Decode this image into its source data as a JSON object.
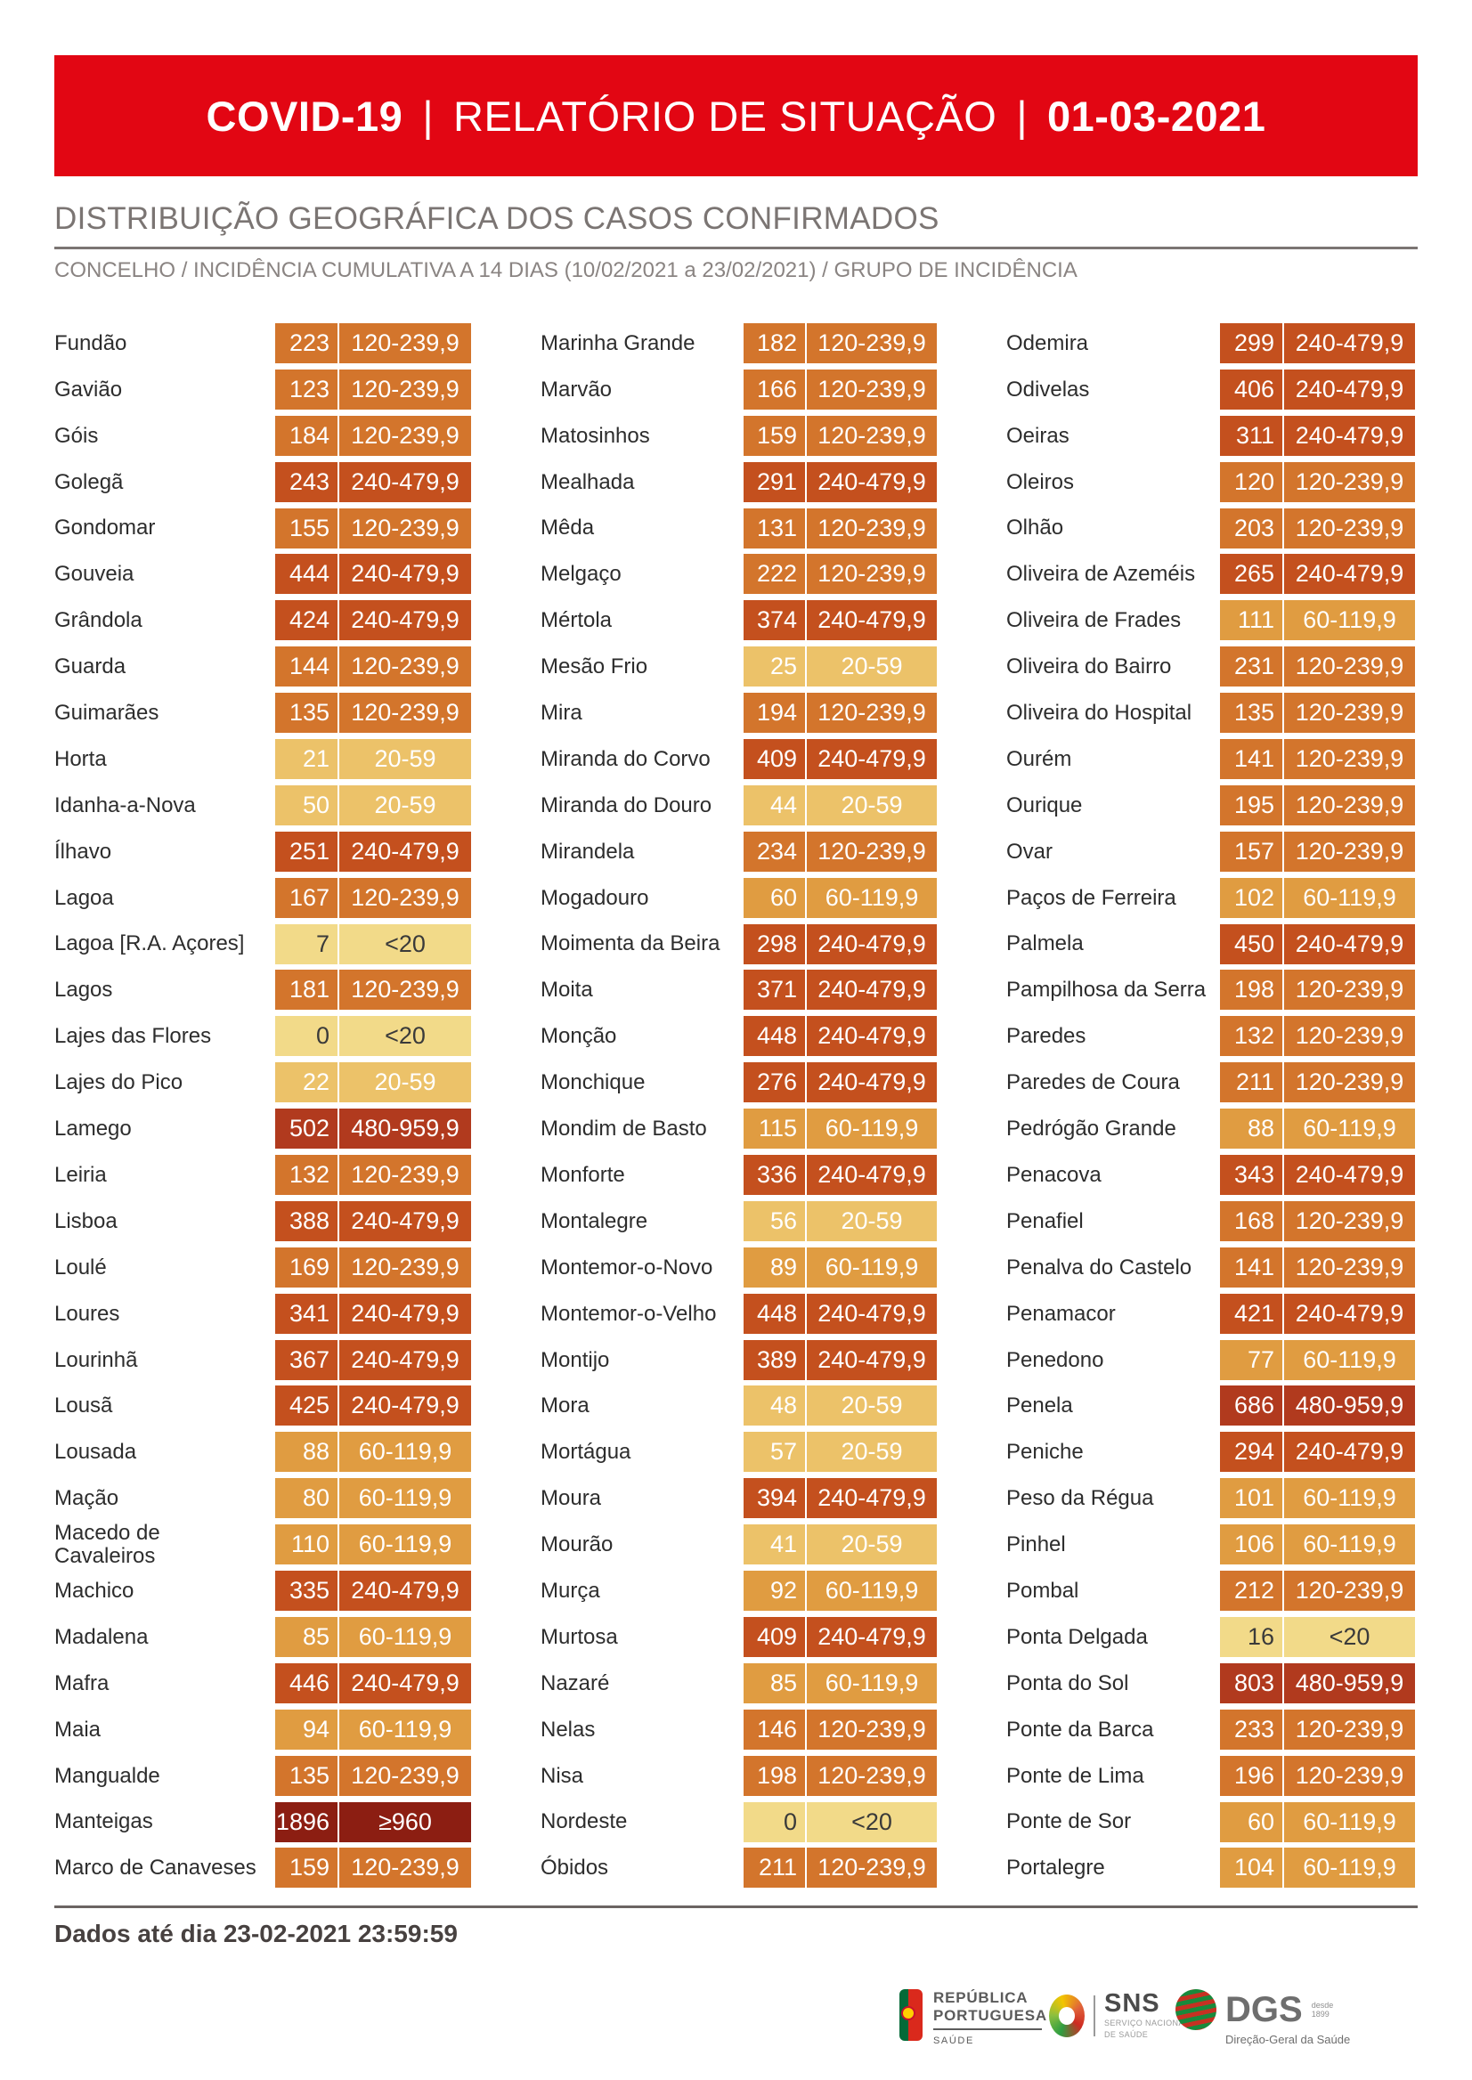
{
  "banner": {
    "product": "COVID-19",
    "separator": "|",
    "report": "RELATÓRIO DE SITUAÇÃO",
    "date": "01-03-2021",
    "background": "#E20613"
  },
  "section": {
    "title": "DISTRIBUIÇÃO GEOGRÁFICA DOS CASOS CONFIRMADOS",
    "subtitle": "CONCELHO / INCIDÊNCIA CUMULATIVA A 14 DIAS (10/02/2021 a 23/02/2021) / GRUPO DE INCIDÊNCIA"
  },
  "bands": {
    "<20": {
      "bg": "#F2DA89",
      "fg": "#3A3A3A"
    },
    "20-59": {
      "bg": "#ECC269",
      "fg": "#FFFFFF"
    },
    "60-119,9": {
      "bg": "#E09C41",
      "fg": "#FFFFFF"
    },
    "120-239,9": {
      "bg": "#D3752C",
      "fg": "#FFFFFF"
    },
    "240-479,9": {
      "bg": "#C4501E",
      "fg": "#FFFFFF"
    },
    "480-959,9": {
      "bg": "#B13A1E",
      "fg": "#FFFFFF"
    },
    "≥960": {
      "bg": "#8C1E12",
      "fg": "#FFFFFF"
    }
  },
  "table": {
    "columns": [
      [
        [
          "Fundão",
          "223",
          "120-239,9"
        ],
        [
          "Gavião",
          "123",
          "120-239,9"
        ],
        [
          "Góis",
          "184",
          "120-239,9"
        ],
        [
          "Golegã",
          "243",
          "240-479,9"
        ],
        [
          "Gondomar",
          "155",
          "120-239,9"
        ],
        [
          "Gouveia",
          "444",
          "240-479,9"
        ],
        [
          "Grândola",
          "424",
          "240-479,9"
        ],
        [
          "Guarda",
          "144",
          "120-239,9"
        ],
        [
          "Guimarães",
          "135",
          "120-239,9"
        ],
        [
          "Horta",
          "21",
          "20-59"
        ],
        [
          "Idanha-a-Nova",
          "50",
          "20-59"
        ],
        [
          "Ílhavo",
          "251",
          "240-479,9"
        ],
        [
          "Lagoa",
          "167",
          "120-239,9"
        ],
        [
          "Lagoa [R.A. Açores]",
          "7",
          "<20"
        ],
        [
          "Lagos",
          "181",
          "120-239,9"
        ],
        [
          "Lajes das Flores",
          "0",
          "<20"
        ],
        [
          "Lajes do Pico",
          "22",
          "20-59"
        ],
        [
          "Lamego",
          "502",
          "480-959,9"
        ],
        [
          "Leiria",
          "132",
          "120-239,9"
        ],
        [
          "Lisboa",
          "388",
          "240-479,9"
        ],
        [
          "Loulé",
          "169",
          "120-239,9"
        ],
        [
          "Loures",
          "341",
          "240-479,9"
        ],
        [
          "Lourinhã",
          "367",
          "240-479,9"
        ],
        [
          "Lousã",
          "425",
          "240-479,9"
        ],
        [
          "Lousada",
          "88",
          "60-119,9"
        ],
        [
          "Mação",
          "80",
          "60-119,9"
        ],
        [
          "Macedo de Cavaleiros",
          "110",
          "60-119,9"
        ],
        [
          "Machico",
          "335",
          "240-479,9"
        ],
        [
          "Madalena",
          "85",
          "60-119,9"
        ],
        [
          "Mafra",
          "446",
          "240-479,9"
        ],
        [
          "Maia",
          "94",
          "60-119,9"
        ],
        [
          "Mangualde",
          "135",
          "120-239,9"
        ],
        [
          "Manteigas",
          "1896",
          "≥960"
        ],
        [
          "Marco de Canaveses",
          "159",
          "120-239,9"
        ]
      ],
      [
        [
          "Marinha Grande",
          "182",
          "120-239,9"
        ],
        [
          "Marvão",
          "166",
          "120-239,9"
        ],
        [
          "Matosinhos",
          "159",
          "120-239,9"
        ],
        [
          "Mealhada",
          "291",
          "240-479,9"
        ],
        [
          "Mêda",
          "131",
          "120-239,9"
        ],
        [
          "Melgaço",
          "222",
          "120-239,9"
        ],
        [
          "Mértola",
          "374",
          "240-479,9"
        ],
        [
          "Mesão Frio",
          "25",
          "20-59"
        ],
        [
          "Mira",
          "194",
          "120-239,9"
        ],
        [
          "Miranda do Corvo",
          "409",
          "240-479,9"
        ],
        [
          "Miranda do Douro",
          "44",
          "20-59"
        ],
        [
          "Mirandela",
          "234",
          "120-239,9"
        ],
        [
          "Mogadouro",
          "60",
          "60-119,9"
        ],
        [
          "Moimenta da Beira",
          "298",
          "240-479,9"
        ],
        [
          "Moita",
          "371",
          "240-479,9"
        ],
        [
          "Monção",
          "448",
          "240-479,9"
        ],
        [
          "Monchique",
          "276",
          "240-479,9"
        ],
        [
          "Mondim de Basto",
          "115",
          "60-119,9"
        ],
        [
          "Monforte",
          "336",
          "240-479,9"
        ],
        [
          "Montalegre",
          "56",
          "20-59"
        ],
        [
          "Montemor-o-Novo",
          "89",
          "60-119,9"
        ],
        [
          "Montemor-o-Velho",
          "448",
          "240-479,9"
        ],
        [
          "Montijo",
          "389",
          "240-479,9"
        ],
        [
          "Mora",
          "48",
          "20-59"
        ],
        [
          "Mortágua",
          "57",
          "20-59"
        ],
        [
          "Moura",
          "394",
          "240-479,9"
        ],
        [
          "Mourão",
          "41",
          "20-59"
        ],
        [
          "Murça",
          "92",
          "60-119,9"
        ],
        [
          "Murtosa",
          "409",
          "240-479,9"
        ],
        [
          "Nazaré",
          "85",
          "60-119,9"
        ],
        [
          "Nelas",
          "146",
          "120-239,9"
        ],
        [
          "Nisa",
          "198",
          "120-239,9"
        ],
        [
          "Nordeste",
          "0",
          "<20"
        ],
        [
          "Óbidos",
          "211",
          "120-239,9"
        ]
      ],
      [
        [
          "Odemira",
          "299",
          "240-479,9"
        ],
        [
          "Odivelas",
          "406",
          "240-479,9"
        ],
        [
          "Oeiras",
          "311",
          "240-479,9"
        ],
        [
          "Oleiros",
          "120",
          "120-239,9"
        ],
        [
          "Olhão",
          "203",
          "120-239,9"
        ],
        [
          "Oliveira de Azeméis",
          "265",
          "240-479,9"
        ],
        [
          "Oliveira de Frades",
          "111",
          "60-119,9"
        ],
        [
          "Oliveira do Bairro",
          "231",
          "120-239,9"
        ],
        [
          "Oliveira do Hospital",
          "135",
          "120-239,9"
        ],
        [
          "Ourém",
          "141",
          "120-239,9"
        ],
        [
          "Ourique",
          "195",
          "120-239,9"
        ],
        [
          "Ovar",
          "157",
          "120-239,9"
        ],
        [
          "Paços de Ferreira",
          "102",
          "60-119,9"
        ],
        [
          "Palmela",
          "450",
          "240-479,9"
        ],
        [
          "Pampilhosa da Serra",
          "198",
          "120-239,9"
        ],
        [
          "Paredes",
          "132",
          "120-239,9"
        ],
        [
          "Paredes de Coura",
          "211",
          "120-239,9"
        ],
        [
          "Pedrógão Grande",
          "88",
          "60-119,9"
        ],
        [
          "Penacova",
          "343",
          "240-479,9"
        ],
        [
          "Penafiel",
          "168",
          "120-239,9"
        ],
        [
          "Penalva do Castelo",
          "141",
          "120-239,9"
        ],
        [
          "Penamacor",
          "421",
          "240-479,9"
        ],
        [
          "Penedono",
          "77",
          "60-119,9"
        ],
        [
          "Penela",
          "686",
          "480-959,9"
        ],
        [
          "Peniche",
          "294",
          "240-479,9"
        ],
        [
          "Peso da Régua",
          "101",
          "60-119,9"
        ],
        [
          "Pinhel",
          "106",
          "60-119,9"
        ],
        [
          "Pombal",
          "212",
          "120-239,9"
        ],
        [
          "Ponta Delgada",
          "16",
          "<20"
        ],
        [
          "Ponta do Sol",
          "803",
          "480-959,9"
        ],
        [
          "Ponte da Barca",
          "233",
          "120-239,9"
        ],
        [
          "Ponte de Lima",
          "196",
          "120-239,9"
        ],
        [
          "Ponte de Sor",
          "60",
          "60-119,9"
        ],
        [
          "Portalegre",
          "104",
          "60-119,9"
        ]
      ]
    ]
  },
  "footer": {
    "note": "Dados até dia 23-02-2021 23:59:59"
  },
  "logos": {
    "republica": {
      "line1": "REPÚBLICA",
      "line2": "PORTUGUESA",
      "sub": "SAÚDE"
    },
    "sns": {
      "abbr": "SNS",
      "sub1": "SERVIÇO NACIONAL",
      "sub2": "DE SAÚDE"
    },
    "dgs": {
      "abbr": "DGS",
      "since1": "desde",
      "since2": "1899",
      "sub": "Direção-Geral da Saúde"
    }
  }
}
